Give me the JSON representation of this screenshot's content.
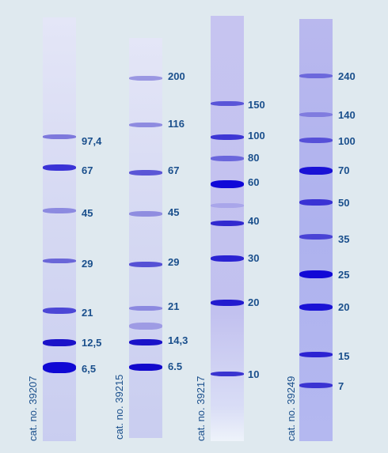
{
  "lanes": [
    {
      "catalog": "cat. no. 39207",
      "bands": [
        "97,4",
        "67",
        "45",
        "29",
        "21",
        "12,5",
        "6,5"
      ]
    },
    {
      "catalog": "cat. no. 39215",
      "bands": [
        "200",
        "116",
        "67",
        "45",
        "29",
        "21",
        "14,3",
        "6.5"
      ]
    },
    {
      "catalog": "cat. no. 39217",
      "bands": [
        "150",
        "100",
        "80",
        "60",
        "40",
        "30",
        "20",
        "10"
      ]
    },
    {
      "catalog": "cat. no. 39249",
      "bands": [
        "240",
        "140",
        "100",
        "70",
        "50",
        "35",
        "25",
        "20",
        "15",
        "7"
      ]
    }
  ],
  "colors": {
    "label": "#1a4f8c",
    "background": "#dfe9ef",
    "band_strong": "#1f17d6",
    "band_weak": "#8a86e2"
  }
}
